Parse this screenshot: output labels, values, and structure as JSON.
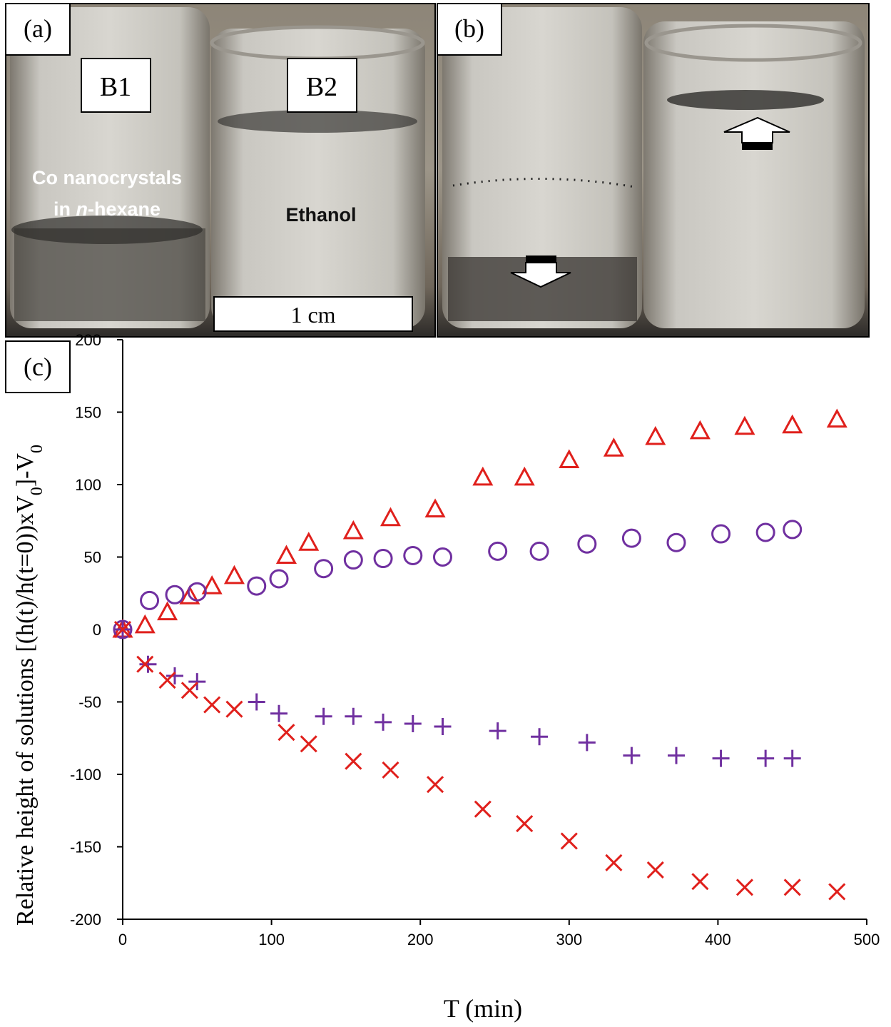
{
  "panels": {
    "a": {
      "label": "(a)",
      "jar1": "B1",
      "jar2": "B2",
      "caption1": "Co nanocrystals",
      "caption2": [
        "in ",
        "n",
        "-hexane"
      ],
      "caption3": "Ethanol",
      "scale": "1 cm"
    },
    "b": {
      "label": "(b)"
    },
    "c": {
      "label": "(c)"
    }
  },
  "chart_data": {
    "type": "scatter",
    "xlabel": "T (min)",
    "ylabel": [
      "Relative height of solutions [(h(t)/h(t=0))xV",
      "0",
      "]-V",
      "0"
    ],
    "xlim": [
      0,
      500
    ],
    "xticks": [
      0,
      100,
      200,
      300,
      400,
      500
    ],
    "ylim": [
      -200,
      200
    ],
    "yticks": [
      -200,
      -150,
      -100,
      -50,
      0,
      50,
      100,
      150,
      200
    ],
    "series": [
      {
        "color": "#e0201c",
        "marker": "triangle",
        "x": [
          0,
          15,
          30,
          45,
          60,
          75,
          110,
          125,
          155,
          180,
          210,
          242,
          270,
          300,
          330,
          358,
          388,
          418,
          450,
          480
        ],
        "values": [
          0,
          3,
          12,
          23,
          30,
          37,
          51,
          60,
          68,
          77,
          83,
          105,
          105,
          117,
          125,
          133,
          137,
          140,
          141,
          145
        ]
      },
      {
        "color": "#7030a0",
        "marker": "circle",
        "x": [
          0,
          18,
          35,
          50,
          90,
          105,
          135,
          155,
          175,
          195,
          215,
          252,
          280,
          312,
          342,
          372,
          402,
          432,
          450
        ],
        "values": [
          0,
          20,
          24,
          26,
          30,
          35,
          42,
          48,
          49,
          51,
          50,
          54,
          54,
          59,
          63,
          60,
          66,
          67,
          69
        ]
      },
      {
        "color": "#7030a0",
        "marker": "plus",
        "x": [
          0,
          17,
          35,
          50,
          90,
          105,
          135,
          155,
          175,
          195,
          215,
          252,
          280,
          312,
          342,
          372,
          402,
          432,
          450
        ],
        "values": [
          0,
          -24,
          -32,
          -36,
          -50,
          -58,
          -60,
          -60,
          -64,
          -65,
          -67,
          -70,
          -74,
          -78,
          -87,
          -87,
          -89,
          -89,
          -89
        ]
      },
      {
        "color": "#e0201c",
        "marker": "cross",
        "x": [
          0,
          15,
          30,
          45,
          60,
          75,
          110,
          125,
          155,
          180,
          210,
          242,
          270,
          300,
          330,
          358,
          388,
          418,
          450,
          480
        ],
        "values": [
          0,
          -24,
          -35,
          -42,
          -52,
          -55,
          -71,
          -79,
          -91,
          -97,
          -107,
          -124,
          -134,
          -146,
          -161,
          -166,
          -174,
          -178,
          -178,
          -181
        ]
      }
    ]
  }
}
